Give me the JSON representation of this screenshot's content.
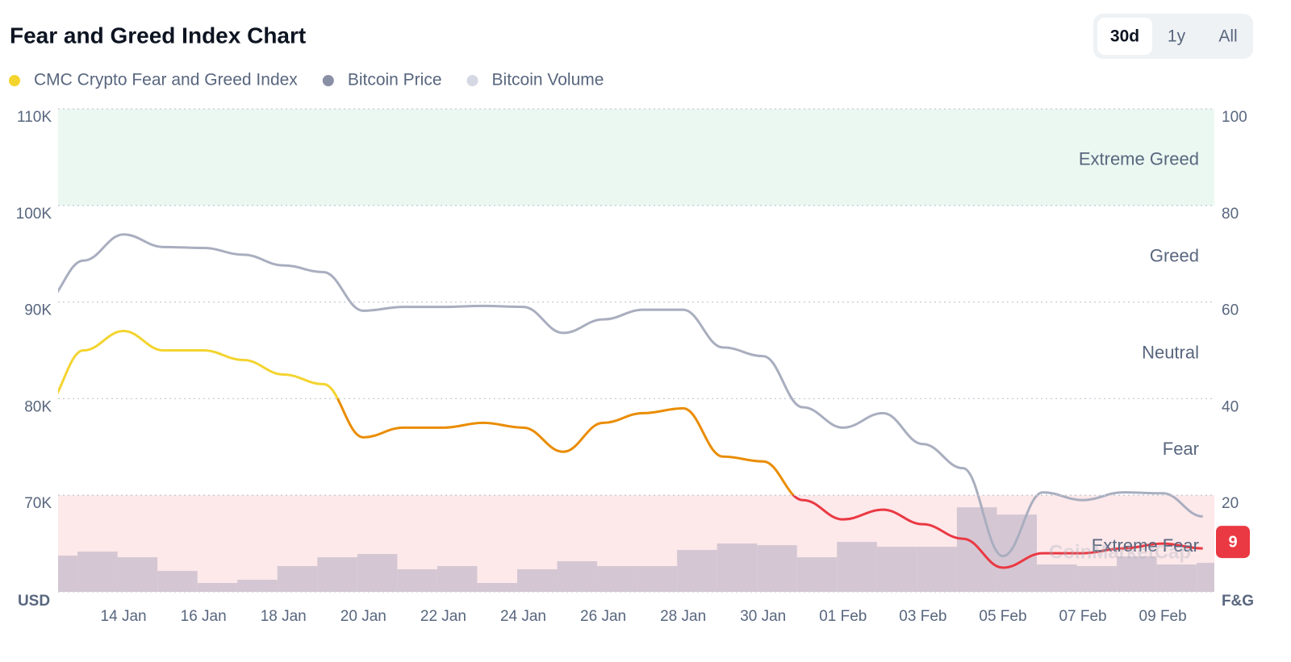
{
  "chart_data": {
    "type": "line",
    "title": "Fear and Greed Index Chart",
    "range_options": [
      "30d",
      "1y",
      "All"
    ],
    "selected_range": "30d",
    "categories": [
      null,
      null,
      "14 Jan",
      null,
      "16 Jan",
      null,
      "18 Jan",
      null,
      "20 Jan",
      null,
      "22 Jan",
      null,
      "24 Jan",
      null,
      "26 Jan",
      null,
      "28 Jan",
      null,
      "30 Jan",
      null,
      "01 Feb",
      null,
      "03 Feb",
      null,
      "05 Feb",
      null,
      "07 Feb",
      null,
      "09 Feb",
      null
    ],
    "series": [
      {
        "name": "CMC Crypto Fear and Greed Index",
        "color": "#f3d42f",
        "axis": "y2",
        "values": [
          38,
          50,
          54,
          50,
          50,
          48,
          45,
          43,
          32,
          34,
          34,
          35,
          34,
          29,
          35,
          37,
          38,
          28,
          27,
          19,
          15,
          17,
          14,
          11,
          5,
          8,
          8,
          9,
          10,
          9
        ]
      },
      {
        "name": "Bitcoin Price",
        "color": "#8990a6",
        "line_color": "#a9aebf",
        "axis": "y",
        "values": [
          89900,
          94300,
          97000,
          95700,
          95600,
          94900,
          93800,
          93100,
          89100,
          89500,
          89500,
          89600,
          89500,
          86800,
          88200,
          89200,
          89200,
          85300,
          84400,
          79100,
          77000,
          78500,
          75300,
          72800,
          63700,
          70300,
          69500,
          70300,
          70200,
          67800
        ]
      },
      {
        "name": "Bitcoin Volume",
        "color": "#d5d8e3",
        "bar_color": "#d4c7d3",
        "axis": "y3",
        "values": [
          45,
          50,
          43,
          26,
          11,
          15,
          32,
          43,
          47,
          28,
          32,
          11,
          28,
          38,
          32,
          32,
          52,
          60,
          58,
          43,
          62,
          56,
          56,
          105,
          96,
          34,
          32,
          44,
          34,
          36
        ]
      }
    ],
    "ylabel": "USD",
    "y2label": "F&G",
    "ylim": [
      60000,
      110000
    ],
    "yticks": [
      {
        "value": 70000,
        "label": "70K"
      },
      {
        "value": 80000,
        "label": "80K"
      },
      {
        "value": 90000,
        "label": "90K"
      },
      {
        "value": 100000,
        "label": "100K"
      },
      {
        "value": 110000,
        "label": "110K"
      }
    ],
    "y2lim": [
      0,
      100
    ],
    "y2ticks": [
      20,
      40,
      60,
      80,
      100
    ],
    "y3lim": [
      0,
      600
    ],
    "zones": [
      {
        "label": "Extreme Greed",
        "range": [
          80,
          100
        ],
        "band": "#eaf8f1",
        "line_color": "#f3d42f"
      },
      {
        "label": "Greed",
        "range": [
          60,
          80
        ],
        "line_color": "#f3d42f"
      },
      {
        "label": "Neutral",
        "range": [
          40,
          60
        ],
        "line_color": "#f3d42f"
      },
      {
        "label": "Fear",
        "range": [
          20,
          40
        ],
        "line_color": "#ea8c00"
      },
      {
        "label": "Extreme Fear",
        "range": [
          0,
          20
        ],
        "band": "#fde8ea",
        "line_color": "#ea3943"
      }
    ],
    "watermark": "CoinMarketCap",
    "grid": true
  }
}
